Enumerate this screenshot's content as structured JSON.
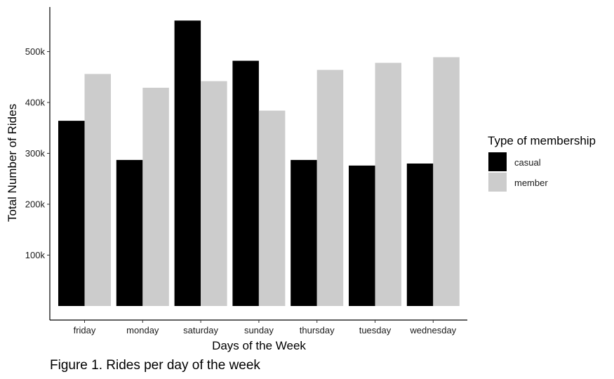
{
  "chart_data": {
    "type": "bar",
    "categories": [
      "friday",
      "monday",
      "saturday",
      "sunday",
      "thursday",
      "tuesday",
      "wednesday"
    ],
    "series": [
      {
        "name": "casual",
        "color": "#000000",
        "values": [
          364000,
          287000,
          561000,
          482000,
          287000,
          276000,
          280000
        ]
      },
      {
        "name": "member",
        "color": "#cccccc",
        "values": [
          456000,
          429000,
          442000,
          384000,
          464000,
          478000,
          489000
        ]
      }
    ],
    "xlabel": "Days of the Week",
    "ylabel": "Total Number of Rides",
    "ylim": [
      0,
      580000
    ],
    "yticks": [
      100000,
      200000,
      300000,
      400000,
      500000
    ],
    "ytick_labels": [
      "100k",
      "200k",
      "300k",
      "400k",
      "500k"
    ],
    "legend": {
      "title": "Type of membership",
      "placement": "right"
    },
    "grid": false
  },
  "caption": "Figure 1. Rides per day of the week"
}
